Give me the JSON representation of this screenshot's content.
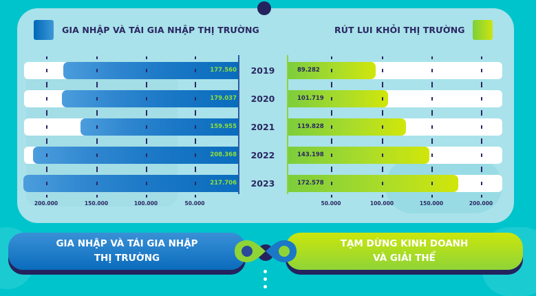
{
  "header": {
    "left_legend_label": "GIA NHẬP VÀ TÁI GIA NHẬP THỊ TRƯỜNG",
    "right_legend_label": "RÚT LUI KHỎI THỊ TRƯỜNG"
  },
  "colors": {
    "left_series": "#0a6cbd",
    "right_series": "#a9dc2a",
    "text_dark": "#2a2762",
    "background": "#00c4cc",
    "panel": "#a9e2ea",
    "left_value_text": "#8fe03a"
  },
  "rows": [
    {
      "year": "2019",
      "left_value": "177.560",
      "right_value": "89.282"
    },
    {
      "year": "2020",
      "left_value": "179.037",
      "right_value": "101.719"
    },
    {
      "year": "2021",
      "left_value": "159.955",
      "right_value": "119.828"
    },
    {
      "year": "2022",
      "left_value": "208.368",
      "right_value": "143.198"
    },
    {
      "year": "2023",
      "left_value": "217.706",
      "right_value": "172.578"
    }
  ],
  "axis": {
    "left_ticks": [
      "200.000",
      "150.000",
      "100.000",
      "50.000"
    ],
    "right_ticks": [
      "50.000",
      "100.000",
      "150.000",
      "200.000"
    ]
  },
  "buttons": {
    "left_line1": "GIA NHẬP VÀ TÁI GIA NHẬP",
    "left_line2": "THỊ TRƯỜNG",
    "right_line1": "TẠM DỪNG KINH DOANH",
    "right_line2": "VÀ GIẢI THỂ"
  },
  "chart_data": {
    "type": "bar",
    "orientation": "horizontal-butterfly",
    "title": "",
    "categories": [
      "2019",
      "2020",
      "2021",
      "2022",
      "2023"
    ],
    "series": [
      {
        "name": "GIA NHẬP VÀ TÁI GIA NHẬP THỊ TRƯỜNG",
        "side": "left",
        "color": "#0a6cbd",
        "values": [
          177560,
          179037,
          159955,
          208368,
          217706
        ]
      },
      {
        "name": "RÚT LUI KHỎI THỊ TRƯỜNG",
        "side": "right",
        "color": "#a9dc2a",
        "values": [
          89282,
          101719,
          119828,
          143198,
          172578
        ]
      }
    ],
    "xlabel": "",
    "ylabel": "",
    "xlim": [
      0,
      220000
    ],
    "xticks": [
      50000,
      100000,
      150000,
      200000
    ],
    "xtick_labels": [
      "50.000",
      "100.000",
      "150.000",
      "200.000"
    ],
    "grid": "dashed vertical tick marks",
    "legend_position": "top",
    "footer_labels": [
      "GIA NHẬP VÀ TÁI GIA NHẬP THỊ TRƯỜNG",
      "TẠM DỪNG KINH DOANH VÀ GIẢI THỂ"
    ]
  }
}
